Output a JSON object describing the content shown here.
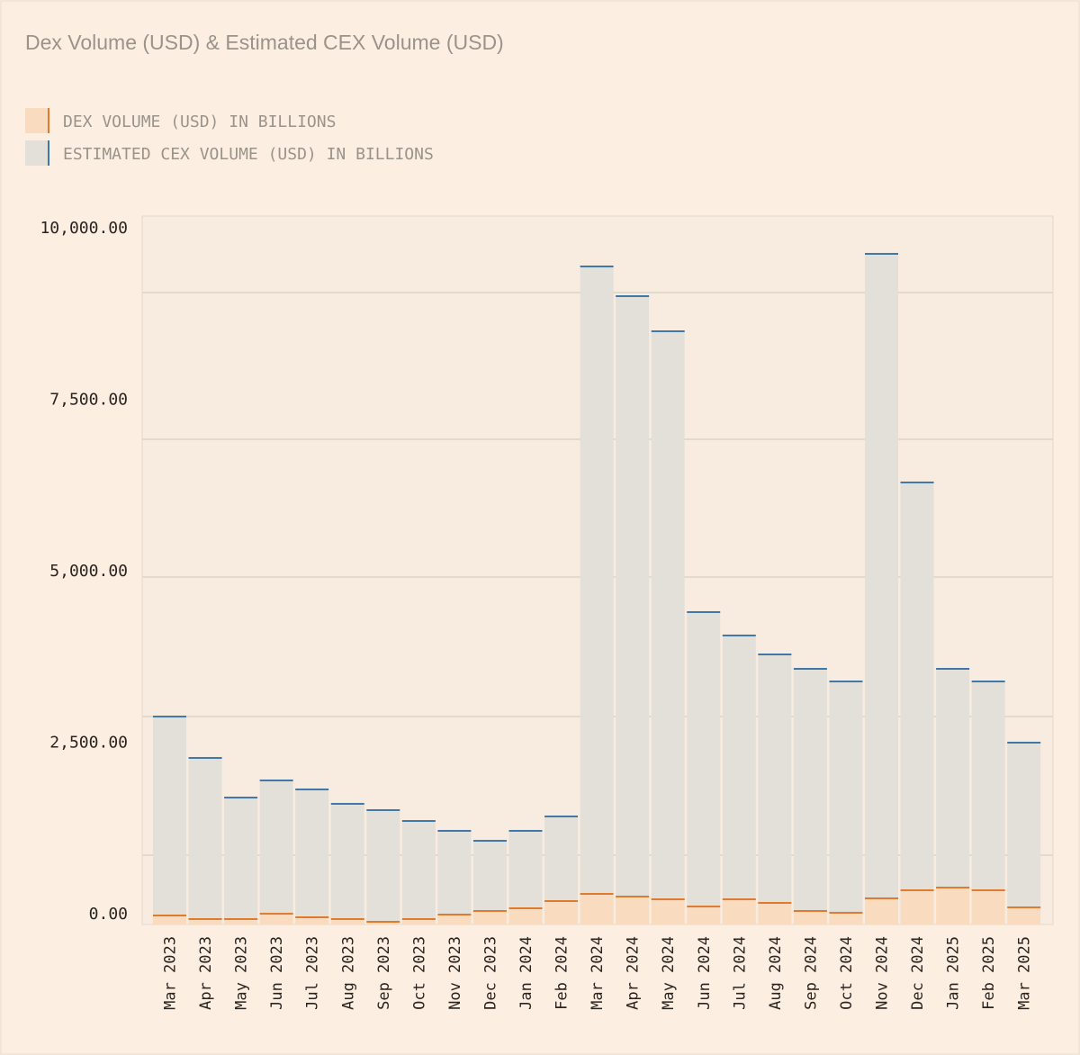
{
  "chart_data": {
    "type": "bar",
    "stacked": true,
    "title": "Dex Volume (USD) & Estimated CEX Volume (USD)",
    "legend_placement": "top-left",
    "grid": true,
    "ylim": [
      0,
      10000
    ],
    "yticks": [
      0,
      2500,
      5000,
      7500,
      10000
    ],
    "ytick_labels": [
      "0.00",
      "2,500.00",
      "5,000.00",
      "7,500.00",
      "10,000.00"
    ],
    "categories": [
      "Mar 2023",
      "Apr 2023",
      "May 2023",
      "Jun 2023",
      "Jul 2023",
      "Aug 2023",
      "Sep 2023",
      "Oct 2023",
      "Nov 2023",
      "Dec 2023",
      "Jan 2024",
      "Feb 2024",
      "Mar 2024",
      "Apr 2024",
      "May 2024",
      "Jun 2024",
      "Jul 2024",
      "Aug 2024",
      "Sep 2024",
      "Oct 2024",
      "Nov 2024",
      "Dec 2024",
      "Jan 2025",
      "Feb 2025",
      "Mar 2025"
    ],
    "series": [
      {
        "name": "DEX VOLUME (USD) IN BILLIONS",
        "fill": "#f9dcc0",
        "edge": "#e07a2e",
        "values": [
          131,
          79,
          79,
          157,
          105,
          79,
          39,
          79,
          144,
          197,
          236,
          341,
          446,
          407,
          367,
          262,
          367,
          315,
          197,
          171,
          381,
          499,
          538,
          499,
          249
        ]
      },
      {
        "name": "ESTIMATED CEX VOLUME (USD) IN BILLIONS",
        "fill": "#e3e0d9",
        "edge": "#3f78a8",
        "values": [
          2900,
          2349,
          1771,
          1943,
          1864,
          1680,
          1628,
          1430,
          1221,
          1023,
          1129,
          1234,
          9147,
          8753,
          8281,
          4292,
          3846,
          3622,
          3530,
          3372,
          9396,
          5945,
          3189,
          3044,
          2402
        ]
      }
    ]
  }
}
